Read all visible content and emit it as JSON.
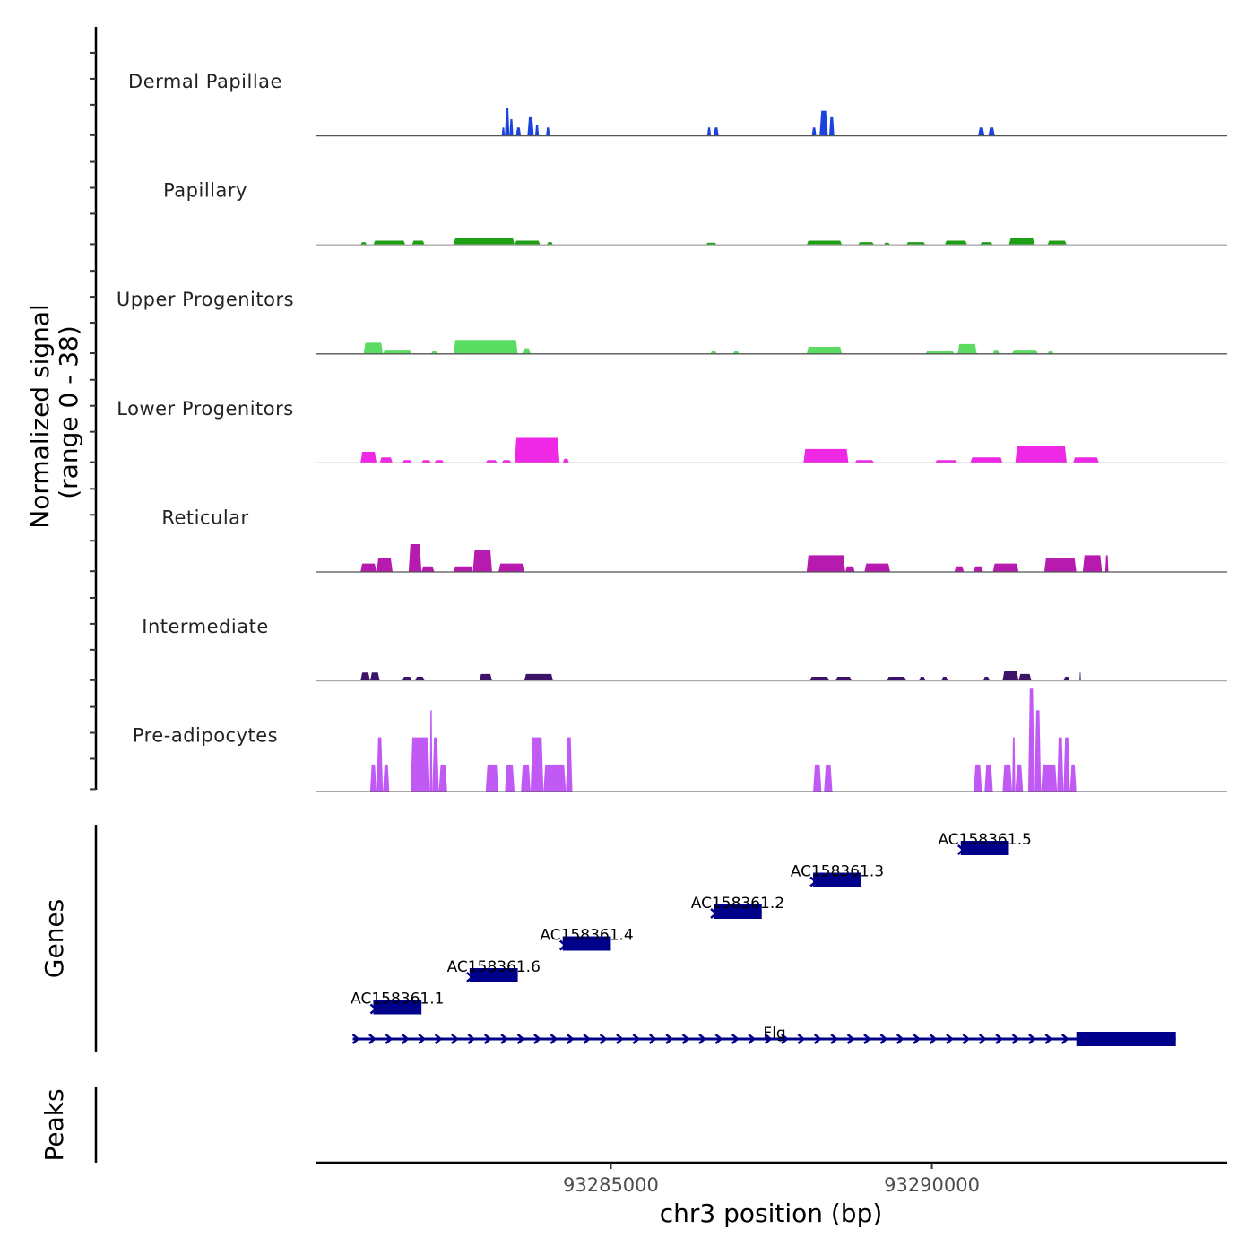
{
  "chart_data": {
    "type": "area",
    "title": "",
    "xlabel": "chr3 position (bp)",
    "ylabel": "Normalized signal\n(range 0 - 38)",
    "ylabel_lines": [
      "Normalized signal",
      "(range 0 - 38)"
    ],
    "y_range": [
      0,
      38
    ],
    "x_range": [
      93280400,
      93294600
    ],
    "x_ticks": [
      93285000,
      93290000
    ],
    "x_tick_labels": [
      "93285000",
      "93290000"
    ],
    "grid": false,
    "legend": "none",
    "tracks": [
      {
        "name": "Dermal Papillae",
        "color": "#1a43e0",
        "peaks": [
          [
            93283300,
            93283350,
            3
          ],
          [
            93283350,
            93283420,
            10
          ],
          [
            93283420,
            93283480,
            6
          ],
          [
            93283520,
            93283600,
            3
          ],
          [
            93283700,
            93283800,
            7
          ],
          [
            93283820,
            93283880,
            4
          ],
          [
            93283990,
            93284050,
            3
          ],
          [
            93286500,
            93286560,
            3
          ],
          [
            93286600,
            93286680,
            3
          ],
          [
            93288130,
            93288200,
            3
          ],
          [
            93288250,
            93288380,
            9
          ],
          [
            93288400,
            93288480,
            7
          ],
          [
            93290720,
            93290820,
            3
          ],
          [
            93290880,
            93290980,
            3
          ]
        ]
      },
      {
        "name": "Papillary",
        "color": "#1e9e12",
        "peaks": [
          [
            93281100,
            93281200,
            1
          ],
          [
            93281300,
            93281800,
            1.5
          ],
          [
            93281900,
            93282100,
            1.5
          ],
          [
            93282550,
            93283500,
            2.5
          ],
          [
            93283500,
            93283900,
            1.5
          ],
          [
            93284000,
            93284100,
            1
          ],
          [
            93286480,
            93286650,
            0.8
          ],
          [
            93288050,
            93288600,
            1.5
          ],
          [
            93288850,
            93289100,
            1
          ],
          [
            93289250,
            93289350,
            0.8
          ],
          [
            93289600,
            93289900,
            1
          ],
          [
            93290200,
            93290550,
            1.5
          ],
          [
            93290750,
            93290950,
            1
          ],
          [
            93291200,
            93291600,
            2.5
          ],
          [
            93291800,
            93292100,
            1.5
          ]
        ]
      },
      {
        "name": "Upper Progenitors",
        "color": "#5adb62",
        "peaks": [
          [
            93281150,
            93281450,
            4
          ],
          [
            93281450,
            93281900,
            1.5
          ],
          [
            93282200,
            93282300,
            1
          ],
          [
            93282550,
            93283550,
            5
          ],
          [
            93283620,
            93283750,
            2
          ],
          [
            93286550,
            93286650,
            1
          ],
          [
            93286900,
            93287000,
            1
          ],
          [
            93288050,
            93288600,
            2.5
          ],
          [
            93289900,
            93290350,
            1
          ],
          [
            93290400,
            93290700,
            3.5
          ],
          [
            93290950,
            93291050,
            1.5
          ],
          [
            93291250,
            93291650,
            1.5
          ],
          [
            93291800,
            93291900,
            1
          ]
        ]
      },
      {
        "name": "Lower Progenitors",
        "color": "#ef28e6",
        "peaks": [
          [
            93281100,
            93281350,
            4
          ],
          [
            93281400,
            93281600,
            2
          ],
          [
            93281750,
            93281900,
            1
          ],
          [
            93282050,
            93282200,
            1
          ],
          [
            93282250,
            93282400,
            1
          ],
          [
            93283050,
            93283230,
            1
          ],
          [
            93283300,
            93283450,
            1
          ],
          [
            93283500,
            93284200,
            9
          ],
          [
            93284250,
            93284350,
            1.5
          ],
          [
            93288000,
            93288700,
            5
          ],
          [
            93288800,
            93289100,
            1
          ],
          [
            93290050,
            93290400,
            1
          ],
          [
            93290600,
            93291100,
            2
          ],
          [
            93291300,
            93292100,
            6
          ],
          [
            93292200,
            93292600,
            2
          ]
        ]
      },
      {
        "name": "Reticular",
        "color": "#b61aae",
        "peaks": [
          [
            93281100,
            93281350,
            3
          ],
          [
            93281350,
            93281600,
            5
          ],
          [
            93281850,
            93282050,
            10
          ],
          [
            93282050,
            93282250,
            2
          ],
          [
            93282550,
            93282850,
            2
          ],
          [
            93282850,
            93283150,
            8
          ],
          [
            93283250,
            93283650,
            3
          ],
          [
            93288050,
            93288650,
            6
          ],
          [
            93288650,
            93288800,
            2
          ],
          [
            93288950,
            93289350,
            3
          ],
          [
            93290350,
            93290500,
            2
          ],
          [
            93290650,
            93290800,
            2
          ],
          [
            93290950,
            93291350,
            3
          ],
          [
            93291750,
            93292250,
            5
          ],
          [
            93292350,
            93292650,
            6
          ],
          [
            93292700,
            93292750,
            6
          ]
        ]
      },
      {
        "name": "Intermediate",
        "color": "#3d1367",
        "peaks": [
          [
            93281100,
            93281250,
            3
          ],
          [
            93281250,
            93281400,
            3
          ],
          [
            93281750,
            93281900,
            1.5
          ],
          [
            93281950,
            93282100,
            1.5
          ],
          [
            93282950,
            93283150,
            2.5
          ],
          [
            93283650,
            93284100,
            2.5
          ],
          [
            93288100,
            93288400,
            1.5
          ],
          [
            93288500,
            93288750,
            1.5
          ],
          [
            93289300,
            93289600,
            1.5
          ],
          [
            93289800,
            93289900,
            1.5
          ],
          [
            93290150,
            93290250,
            1.5
          ],
          [
            93290800,
            93290900,
            1.5
          ],
          [
            93291100,
            93291350,
            3.5
          ],
          [
            93291350,
            93291550,
            2.5
          ],
          [
            93292050,
            93292150,
            1.5
          ],
          [
            93292300,
            93292320,
            3
          ]
        ]
      },
      {
        "name": "Pre-adipocytes",
        "color": "#c159f5",
        "peaks": [
          [
            93281250,
            93281350,
            10
          ],
          [
            93281350,
            93281450,
            20
          ],
          [
            93281450,
            93281550,
            10
          ],
          [
            93281880,
            93282180,
            20
          ],
          [
            93282180,
            93282220,
            30
          ],
          [
            93282220,
            93282320,
            20
          ],
          [
            93282320,
            93282450,
            10
          ],
          [
            93283050,
            93283250,
            10
          ],
          [
            93283350,
            93283500,
            10
          ],
          [
            93283600,
            93283750,
            10
          ],
          [
            93283750,
            93283950,
            20
          ],
          [
            93283950,
            93284300,
            10
          ],
          [
            93284300,
            93284400,
            20
          ],
          [
            93288150,
            93288280,
            10
          ],
          [
            93288320,
            93288450,
            10
          ],
          [
            93290650,
            93290780,
            10
          ],
          [
            93290820,
            93290950,
            10
          ],
          [
            93291100,
            93291250,
            10
          ],
          [
            93291250,
            93291300,
            20
          ],
          [
            93291300,
            93291420,
            10
          ],
          [
            93291500,
            93291600,
            38
          ],
          [
            93291600,
            93291700,
            30
          ],
          [
            93291700,
            93291950,
            10
          ],
          [
            93291950,
            93292050,
            20
          ],
          [
            93292050,
            93292150,
            20
          ],
          [
            93292150,
            93292250,
            10
          ]
        ]
      }
    ],
    "genes_track": {
      "label": "Genes",
      "color": "#00008b",
      "genes": [
        {
          "name": "AC158361.1",
          "start": 93281300,
          "end": 93282050,
          "row": 1,
          "strand": "+"
        },
        {
          "name": "AC158361.6",
          "start": 93282800,
          "end": 93283550,
          "row": 2,
          "strand": "+"
        },
        {
          "name": "AC158361.4",
          "start": 93284250,
          "end": 93285000,
          "row": 3,
          "strand": "+"
        },
        {
          "name": "AC158361.2",
          "start": 93286600,
          "end": 93287350,
          "row": 4,
          "strand": "+"
        },
        {
          "name": "AC158361.3",
          "start": 93288150,
          "end": 93288900,
          "row": 5,
          "strand": "+"
        },
        {
          "name": "AC158361.5",
          "start": 93290450,
          "end": 93291200,
          "row": 6,
          "strand": "+"
        },
        {
          "name": "Flg",
          "start": 93280980,
          "end": 93293800,
          "row": 0,
          "strand": "+",
          "exon_start": 93292250,
          "label_pos": 93287550
        }
      ]
    },
    "peaks_track": {
      "label": "Peaks",
      "peaks": []
    }
  }
}
